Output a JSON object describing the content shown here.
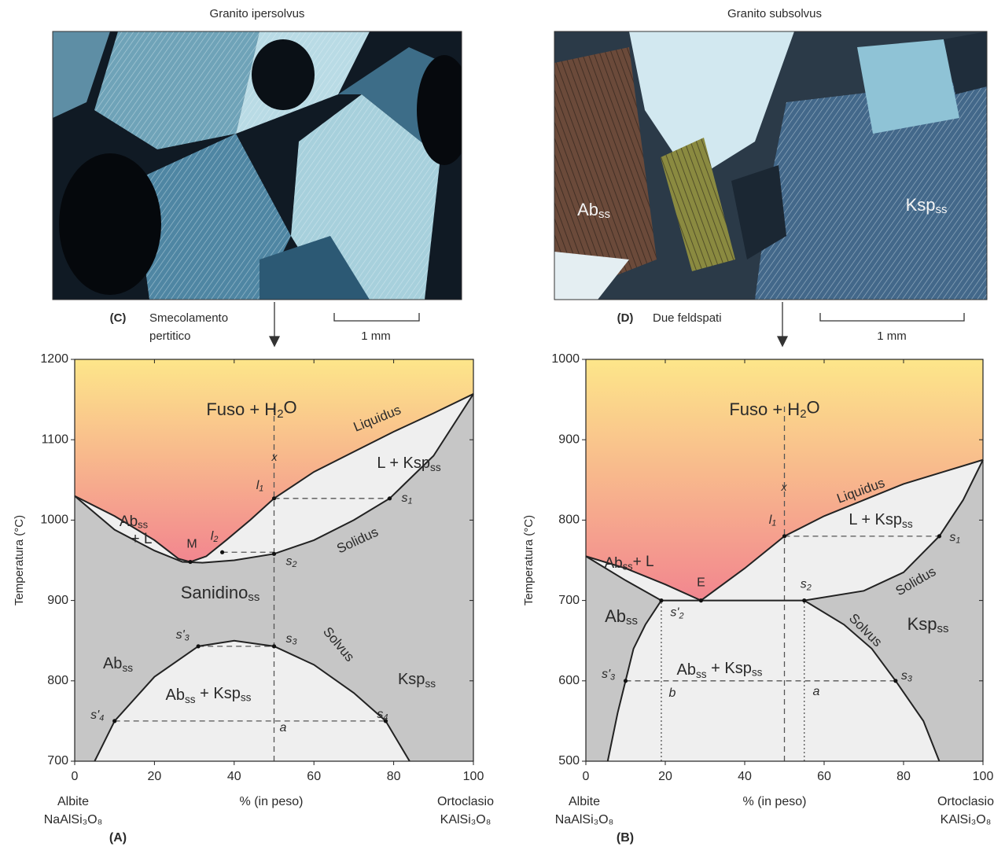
{
  "photos": [
    {
      "title": "Granito ipersolvus",
      "panel": "(C)",
      "caption": [
        "Smecolamento",
        "pertitico"
      ],
      "scale": "1 mm"
    },
    {
      "title": "Granito subsolvus",
      "panel": "(D)",
      "caption": [
        "Due feldspati"
      ],
      "scale": "1 mm",
      "labels": [
        [
          "Ab",
          {
            "sub": "ss"
          }
        ],
        [
          "Ksp",
          {
            "sub": "ss"
          }
        ]
      ]
    }
  ],
  "chart_data": [
    {
      "type": "phase",
      "panel": "(A)",
      "ylabel": "Temperatura (°C)",
      "xlabel": "% (in peso)",
      "xends": [
        [
          "Albite",
          "NaAlSi₃O₈"
        ],
        [
          "Ortoclasio",
          "KAlSi₃O₈"
        ]
      ],
      "xlim": [
        0,
        100
      ],
      "ylim": [
        700,
        1200
      ],
      "xticks": [
        0,
        20,
        40,
        60,
        80,
        100
      ],
      "yticks": [
        700,
        800,
        900,
        1000,
        1100,
        1200
      ],
      "colors": {
        "melt_top": "#fde68a",
        "melt_bottom": "#f2868f",
        "solid": "#c6c6c6",
        "two_phase": "#efefef",
        "line": "#222222"
      },
      "series": [
        {
          "name": "Liquidus",
          "x": [
            0,
            10,
            20,
            26,
            29,
            33,
            38,
            44,
            50,
            60,
            70,
            80,
            90,
            100
          ],
          "y": [
            1030,
            1005,
            975,
            952,
            948,
            955,
            975,
            1000,
            1027,
            1060,
            1085,
            1110,
            1133,
            1157
          ]
        },
        {
          "name": "Solidus",
          "x": [
            0,
            10,
            20,
            27,
            32,
            40,
            50,
            60,
            70,
            79,
            90,
            100
          ],
          "y": [
            1030,
            988,
            962,
            948,
            947,
            950,
            958,
            975,
            1000,
            1027,
            1080,
            1157
          ]
        },
        {
          "name": "Solvus",
          "x": [
            5,
            10,
            20,
            31,
            40,
            50,
            60,
            70,
            78,
            84
          ],
          "y": [
            700,
            750,
            805,
            843,
            850,
            843,
            820,
            785,
            750,
            700
          ]
        }
      ],
      "guides": [
        {
          "style": "dashed",
          "x": [
            50,
            50
          ],
          "y": [
            700,
            1145
          ]
        },
        {
          "style": "dashed",
          "x": [
            50,
            79
          ],
          "y": [
            1027,
            1027
          ]
        },
        {
          "style": "dashed",
          "x": [
            37,
            50
          ],
          "y": [
            960,
            960
          ]
        },
        {
          "style": "dashed",
          "x": [
            31,
            50
          ],
          "y": [
            843,
            843
          ]
        },
        {
          "style": "dashed",
          "x": [
            10,
            78
          ],
          "y": [
            750,
            750
          ]
        }
      ],
      "points": [
        {
          "label": [
            "l",
            {
              "sub": "1"
            }
          ],
          "x": 50,
          "y": 1027
        },
        {
          "label": [
            "s",
            {
              "sub": "1"
            }
          ],
          "x": 79,
          "y": 1027
        },
        {
          "label": [
            "l",
            {
              "sub": "2"
            }
          ],
          "x": 37,
          "y": 960
        },
        {
          "label": [
            "s",
            {
              "sub": "2"
            }
          ],
          "x": 50,
          "y": 958
        },
        {
          "label": [
            "M"
          ],
          "x": 29,
          "y": 948
        },
        {
          "label": [
            "s'",
            {
              "sub": "3"
            }
          ],
          "x": 31,
          "y": 843
        },
        {
          "label": [
            "s",
            {
              "sub": "3"
            }
          ],
          "x": 50,
          "y": 843
        },
        {
          "label": [
            "s'",
            {
              "sub": "4"
            }
          ],
          "x": 10,
          "y": 750
        },
        {
          "label": [
            "s",
            {
              "sub": "4"
            }
          ],
          "x": 78,
          "y": 750
        }
      ],
      "labels": [
        [
          "Fuso + H",
          {
            "sub": "2"
          },
          "O"
        ],
        [
          "L + Ksp",
          {
            "sub": "ss"
          }
        ],
        [
          "Ab",
          {
            "sub": "ss"
          }
        ],
        [
          "+ L"
        ],
        [
          "Sanidino",
          {
            "sub": "ss"
          }
        ],
        [
          "Ab",
          {
            "sub": "ss"
          }
        ],
        [
          "Ab",
          {
            "sub": "ss"
          },
          " + Ksp",
          {
            "sub": "ss"
          }
        ],
        [
          "Ksp",
          {
            "sub": "ss"
          }
        ],
        [
          "x"
        ],
        [
          "a"
        ]
      ]
    },
    {
      "type": "phase",
      "panel": "(B)",
      "ylabel": "Temperatura (°C)",
      "xlabel": "% (in peso)",
      "xends": [
        [
          "Albite",
          "NaAlSi₃O₈"
        ],
        [
          "Ortoclasio",
          "KAlSi₃O₈"
        ]
      ],
      "xlim": [
        0,
        100
      ],
      "ylim": [
        500,
        1000
      ],
      "xticks": [
        0,
        20,
        40,
        60,
        80,
        100
      ],
      "yticks": [
        500,
        600,
        700,
        800,
        900,
        1000
      ],
      "colors": {
        "melt_top": "#fde68a",
        "melt_bottom": "#f2868f",
        "solid": "#c6c6c6",
        "two_phase": "#efefef",
        "line": "#222222"
      },
      "series": [
        {
          "name": "Liquidus",
          "x": [
            0,
            10,
            20,
            29,
            40,
            50,
            60,
            70,
            80,
            90,
            100
          ],
          "y": [
            755,
            740,
            720,
            700,
            740,
            780,
            805,
            825,
            845,
            860,
            875
          ]
        },
        {
          "name": "Solidus",
          "x": [
            0,
            10,
            19,
            55,
            70,
            80,
            89,
            95,
            100
          ],
          "y": [
            755,
            725,
            700,
            700,
            712,
            735,
            780,
            825,
            875
          ]
        },
        {
          "name": "Solvus",
          "x": [
            5.5,
            8,
            10,
            12,
            15,
            19,
            null,
            55,
            65,
            72,
            78,
            85,
            89
          ],
          "y": [
            500,
            560,
            600,
            640,
            670,
            700,
            null,
            700,
            670,
            640,
            600,
            550,
            500
          ]
        }
      ],
      "guides": [
        {
          "style": "dashed",
          "x": [
            50,
            50
          ],
          "y": [
            500,
            945
          ]
        },
        {
          "style": "dashed",
          "x": [
            50,
            89
          ],
          "y": [
            780,
            780
          ]
        },
        {
          "style": "dashed",
          "x": [
            10,
            78
          ],
          "y": [
            600,
            600
          ]
        },
        {
          "style": "dotted",
          "x": [
            19,
            19
          ],
          "y": [
            500,
            700
          ]
        },
        {
          "style": "dotted",
          "x": [
            55,
            55
          ],
          "y": [
            500,
            700
          ]
        }
      ],
      "points": [
        {
          "label": [
            "l",
            {
              "sub": "1"
            }
          ],
          "x": 50,
          "y": 780
        },
        {
          "label": [
            "s",
            {
              "sub": "1"
            }
          ],
          "x": 89,
          "y": 780
        },
        {
          "label": [
            "E"
          ],
          "x": 29,
          "y": 700
        },
        {
          "label": [
            "s'",
            {
              "sub": "2"
            }
          ],
          "x": 19,
          "y": 700
        },
        {
          "label": [
            "s",
            {
              "sub": "2"
            }
          ],
          "x": 55,
          "y": 700
        },
        {
          "label": [
            "s'",
            {
              "sub": "3"
            }
          ],
          "x": 10,
          "y": 600
        },
        {
          "label": [
            "s",
            {
              "sub": "3"
            }
          ],
          "x": 78,
          "y": 600
        }
      ],
      "labels": [
        [
          "Fuso + H",
          {
            "sub": "2"
          },
          "O"
        ],
        [
          "L + Ksp",
          {
            "sub": "ss"
          }
        ],
        [
          "Ab",
          {
            "sub": "ss"
          },
          "+ L"
        ],
        [
          "Ab",
          {
            "sub": "ss"
          }
        ],
        [
          "Ksp",
          {
            "sub": "ss"
          }
        ],
        [
          "Ab",
          {
            "sub": "ss"
          },
          " + Ksp",
          {
            "sub": "ss"
          }
        ],
        [
          "b"
        ],
        [
          "a"
        ],
        [
          "x"
        ]
      ]
    }
  ]
}
